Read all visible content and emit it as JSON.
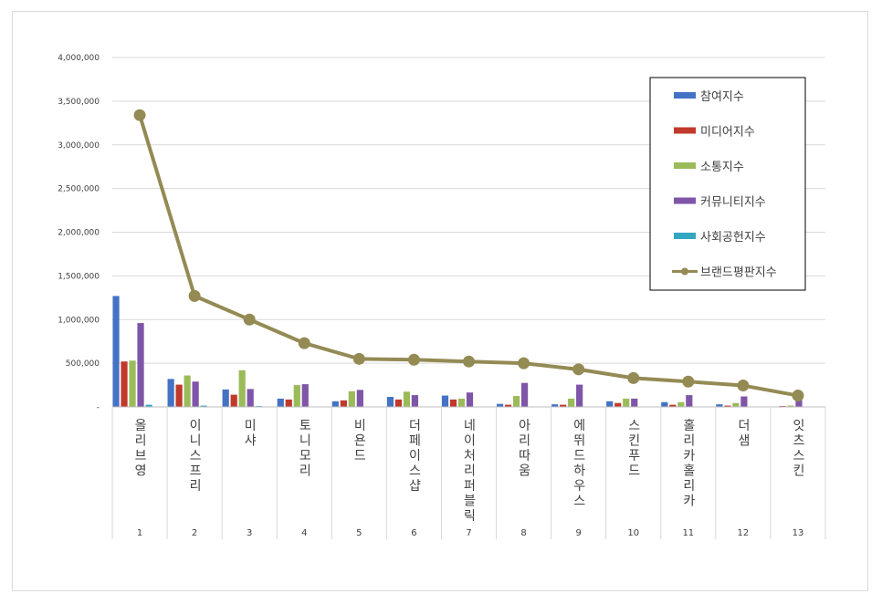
{
  "chart_data": {
    "type": "bar",
    "ylim": [
      0,
      4000000
    ],
    "yticks": [
      "-",
      "500,000",
      "1,000,000",
      "1,500,000",
      "2,000,000",
      "2,500,000",
      "3,000,000",
      "3,500,000",
      "4,000,000"
    ],
    "ytick_values": [
      0,
      500000,
      1000000,
      1500000,
      2000000,
      2500000,
      3000000,
      3500000,
      4000000
    ],
    "grid": true,
    "legend_position": "top-right",
    "categories": [
      "올리브영",
      "이니스프리",
      "미샤",
      "토니모리",
      "비욘드",
      "더페이스샵",
      "네이처리퍼블릭",
      "아리따움",
      "에뛰드하우스",
      "스킨푸드",
      "홀리카홀리카",
      "더샘",
      "잇츠스킨"
    ],
    "ranks": [
      "1",
      "2",
      "3",
      "4",
      "5",
      "6",
      "7",
      "8",
      "9",
      "10",
      "11",
      "12",
      "13"
    ],
    "series": [
      {
        "name": "참여지수",
        "kind": "bar",
        "color": "#4472c4",
        "values": [
          1270000,
          320000,
          200000,
          95000,
          65000,
          115000,
          130000,
          35000,
          30000,
          65000,
          55000,
          30000,
          5000
        ]
      },
      {
        "name": "미디어지수",
        "kind": "bar",
        "color": "#c0392b",
        "values": [
          520000,
          255000,
          140000,
          85000,
          75000,
          85000,
          85000,
          25000,
          25000,
          45000,
          25000,
          15000,
          10000
        ]
      },
      {
        "name": "소통지수",
        "kind": "bar",
        "color": "#9bbb59",
        "values": [
          530000,
          360000,
          420000,
          250000,
          180000,
          175000,
          95000,
          125000,
          95000,
          95000,
          55000,
          45000,
          15000
        ]
      },
      {
        "name": "커뮤니티지수",
        "kind": "bar",
        "color": "#7f55a8",
        "values": [
          960000,
          290000,
          205000,
          260000,
          195000,
          135000,
          165000,
          275000,
          255000,
          95000,
          135000,
          120000,
          85000
        ]
      },
      {
        "name": "사회공헌지수",
        "kind": "bar",
        "color": "#33a6c0",
        "values": [
          25000,
          15000,
          10000,
          5000,
          5000,
          5000,
          5000,
          5000,
          5000,
          5000,
          5000,
          5000,
          5000
        ]
      },
      {
        "name": "브랜드평판지수",
        "kind": "line",
        "color": "#948a54",
        "values": [
          3340000,
          1270000,
          1000000,
          730000,
          550000,
          540000,
          520000,
          500000,
          430000,
          330000,
          290000,
          245000,
          130000
        ]
      }
    ]
  }
}
